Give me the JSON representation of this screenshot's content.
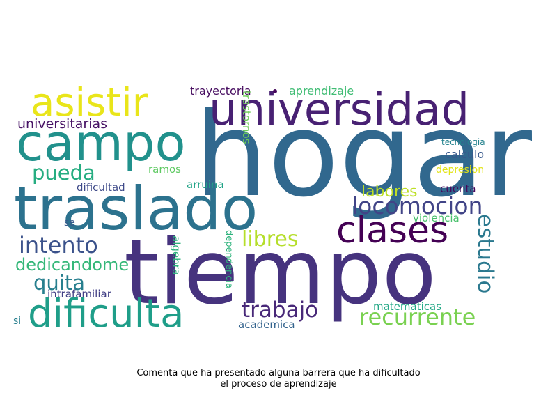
{
  "words": [
    {
      "text": "hogar",
      "color": "#31688e"
    },
    {
      "text": "tiempo",
      "color": "#46337e"
    },
    {
      "text": "traslado",
      "color": "#2c728e"
    },
    {
      "text": "campo",
      "color": "#21918c"
    },
    {
      "text": "universidad",
      "color": "#482173"
    },
    {
      "text": "asistir",
      "color": "#e9e51a"
    },
    {
      "text": "clases",
      "color": "#440154"
    },
    {
      "text": "dificulta",
      "color": "#1f9e89"
    },
    {
      "text": "locomocion",
      "color": "#414487"
    },
    {
      "text": "recurrente",
      "color": "#7ad151"
    },
    {
      "text": "intento",
      "color": "#3b528b"
    },
    {
      "text": "trabajo",
      "color": "#482878"
    },
    {
      "text": "estudio",
      "color": "#2a788e"
    },
    {
      "text": "pueda",
      "color": "#26ad81"
    },
    {
      "text": "quita",
      "color": "#277f8e"
    },
    {
      "text": "dedicandome",
      "color": "#35b779"
    },
    {
      "text": "libres",
      "color": "#b5de2b"
    },
    {
      "text": "labores",
      "color": "#bddf26"
    },
    {
      "text": "universitarias",
      "color": "#471365"
    },
    {
      "text": "trayectoria",
      "color": "#470d60"
    },
    {
      "text": "aprendizaje",
      "color": "#3fbc73"
    },
    {
      "text": "calculo",
      "color": "#38598c"
    },
    {
      "text": "cuenta",
      "color": "#46085c"
    },
    {
      "text": "violencia",
      "color": "#4ac16d"
    },
    {
      "text": "matematicas",
      "color": "#22a785"
    },
    {
      "text": "academica",
      "color": "#33638d"
    },
    {
      "text": "ramos",
      "color": "#5ec962"
    },
    {
      "text": "arruina",
      "color": "#20a386"
    },
    {
      "text": "dificultad",
      "color": "#3e4a89"
    },
    {
      "text": "intrafamiliar",
      "color": "#424086"
    },
    {
      "text": "tecnologia",
      "color": "#25838e"
    },
    {
      "text": "depresion",
      "color": "#e2e418"
    },
    {
      "text": "se",
      "color": "#375a8c"
    },
    {
      "text": "si",
      "color": "#277f8e"
    },
    {
      "text": "trastornos",
      "color": "#6ece58"
    },
    {
      "text": "algebra",
      "color": "#2db27d"
    },
    {
      "text": "dependencia",
      "color": "#2eb37c"
    }
  ],
  "caption": {
    "line1": "Comenta que ha presentado alguna barrera que ha dificultado",
    "line2": "el proceso de aprendizaje"
  }
}
